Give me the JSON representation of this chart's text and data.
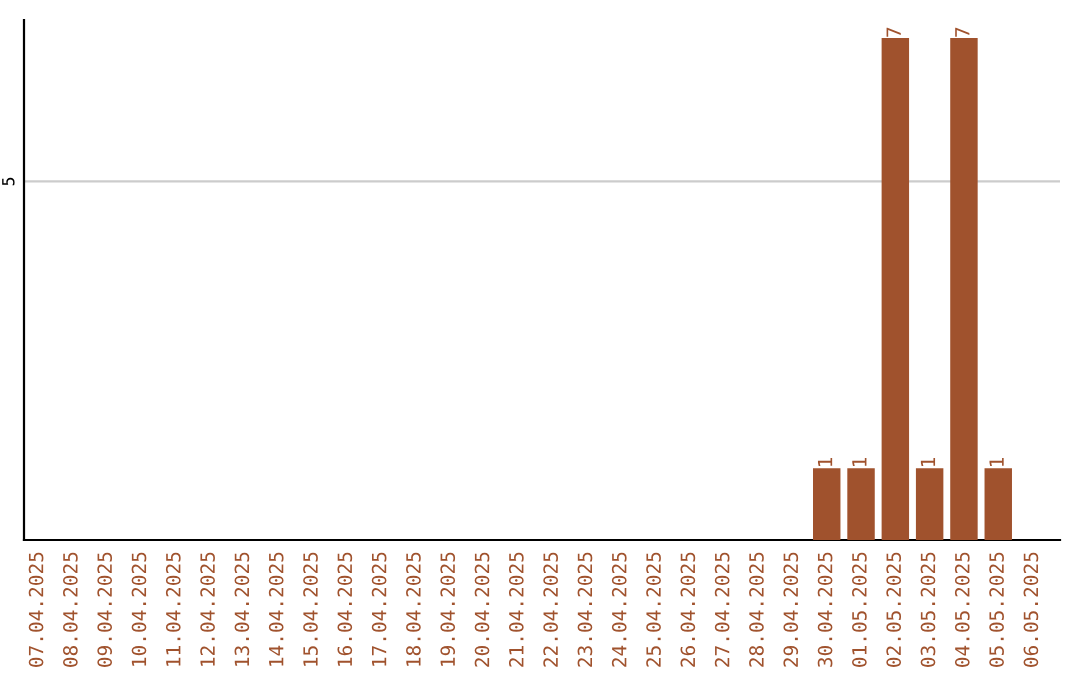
{
  "chart_data": {
    "type": "bar",
    "categories": [
      "07.04.2025",
      "08.04.2025",
      "09.04.2025",
      "10.04.2025",
      "11.04.2025",
      "12.04.2025",
      "13.04.2025",
      "14.04.2025",
      "15.04.2025",
      "16.04.2025",
      "17.04.2025",
      "18.04.2025",
      "19.04.2025",
      "20.04.2025",
      "21.04.2025",
      "22.04.2025",
      "23.04.2025",
      "24.04.2025",
      "25.04.2025",
      "26.04.2025",
      "27.04.2025",
      "28.04.2025",
      "29.04.2025",
      "30.04.2025",
      "01.05.2025",
      "02.05.2025",
      "03.05.2025",
      "04.05.2025",
      "05.05.2025",
      "06.05.2025"
    ],
    "values": [
      null,
      null,
      null,
      null,
      null,
      null,
      null,
      null,
      null,
      null,
      null,
      null,
      null,
      null,
      null,
      null,
      null,
      null,
      null,
      null,
      null,
      null,
      null,
      1,
      1,
      7,
      1,
      7,
      1,
      null
    ],
    "value_labels": [
      null,
      null,
      null,
      null,
      null,
      null,
      null,
      null,
      null,
      null,
      null,
      null,
      null,
      null,
      null,
      null,
      null,
      null,
      null,
      null,
      null,
      null,
      null,
      "1",
      "1",
      "7",
      "1",
      "7",
      "1",
      null
    ],
    "color": "#a0522d",
    "ref_lines": [
      {
        "axis": "y",
        "value": 5,
        "label": "5",
        "color": "#cccccc"
      }
    ]
  }
}
